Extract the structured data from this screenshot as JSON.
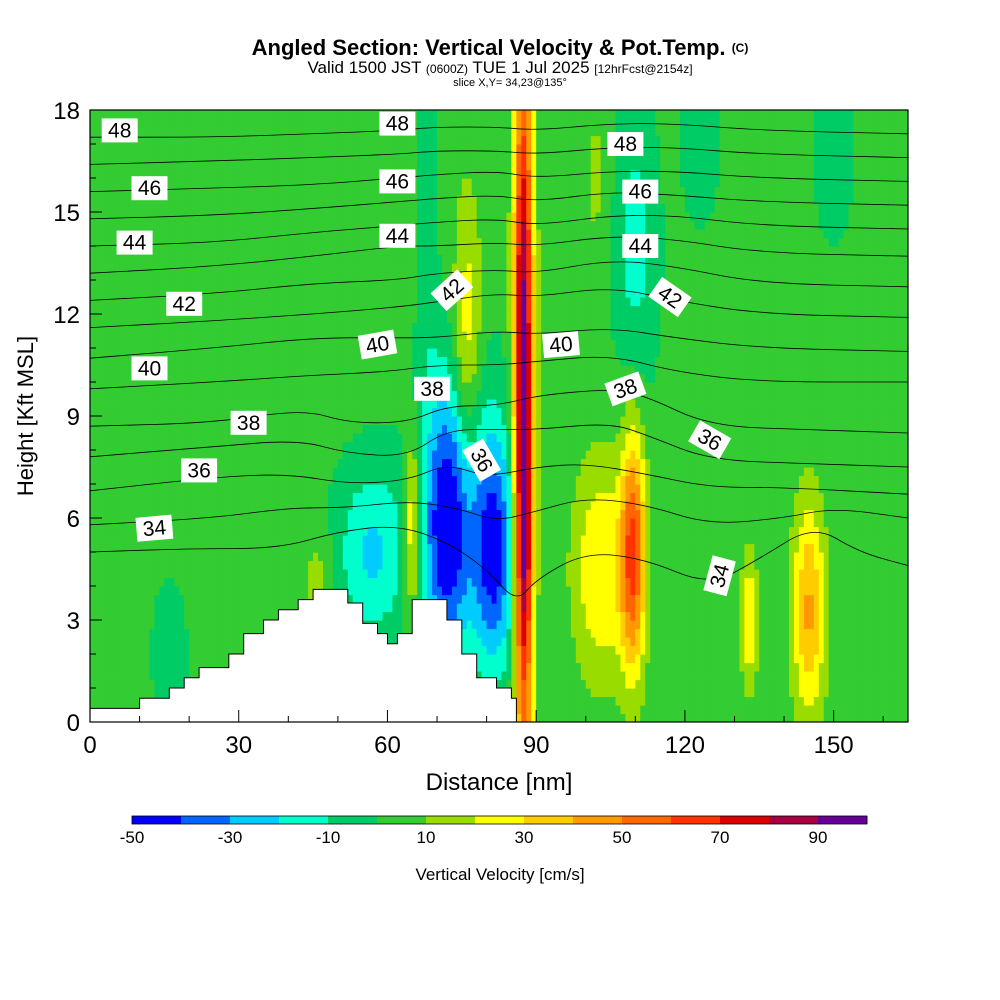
{
  "title": {
    "main": "Angled Section: Vertical Velocity & Pot.Temp.",
    "main_tag": "(C)",
    "valid_a": "Valid 1500 JST",
    "valid_small": "(0600Z)",
    "valid_b": "TUE 1 Jul 2025",
    "valid_fcst": "[12hrFcst@2154z]",
    "slice": "slice X,Y= 34,23@135°"
  },
  "chart_data": {
    "type": "heatmap",
    "xlabel": "Distance [nm]",
    "ylabel": "Height [Kft MSL]",
    "xlim": [
      0,
      165
    ],
    "ylim": [
      0,
      18
    ],
    "x_ticks": [
      0,
      30,
      60,
      90,
      120,
      150
    ],
    "y_ticks": [
      0,
      3,
      6,
      9,
      12,
      15,
      18
    ],
    "colorbar": {
      "label": "Vertical Velocity [cm/s]",
      "range": [
        -50,
        100
      ],
      "tick_values": [
        -50,
        -30,
        -10,
        10,
        30,
        50,
        70,
        90
      ],
      "colors": [
        "#0000ff",
        "#0066ff",
        "#00ccff",
        "#00ffcc",
        "#00cc66",
        "#33cc33",
        "#99dd00",
        "#ffff00",
        "#ffcc00",
        "#ff9900",
        "#ff6600",
        "#ff3300",
        "#dd0000",
        "#aa0044",
        "#660099"
      ]
    },
    "background_value": 3,
    "velocity_features": [
      {
        "x": 87.5,
        "y": 9.0,
        "sx": 1.4,
        "sy": 8.0,
        "value": 90
      },
      {
        "x": 87.5,
        "y": 5.5,
        "sx": 1.0,
        "sy": 2.5,
        "value": 25
      },
      {
        "x": 87.0,
        "y": 14.0,
        "sx": 1.0,
        "sy": 3.0,
        "value": 15
      },
      {
        "x": 81.5,
        "y": 5.0,
        "sx": 3.0,
        "sy": 2.4,
        "value": -45
      },
      {
        "x": 72.0,
        "y": 5.3,
        "sx": 3.2,
        "sy": 2.6,
        "value": -40
      },
      {
        "x": 74.0,
        "y": 7.8,
        "sx": 5.0,
        "sy": 3.0,
        "value": -18
      },
      {
        "x": 57.0,
        "y": 5.0,
        "sx": 5.0,
        "sy": 1.8,
        "value": -22
      },
      {
        "x": 76.0,
        "y": 11.0,
        "sx": 2.2,
        "sy": 3.0,
        "value": 32
      },
      {
        "x": 65.0,
        "y": 5.7,
        "sx": 1.1,
        "sy": 1.8,
        "value": 38
      },
      {
        "x": 103.0,
        "y": 4.5,
        "sx": 4.0,
        "sy": 2.3,
        "value": 30
      },
      {
        "x": 109.5,
        "y": 5.0,
        "sx": 1.8,
        "sy": 2.5,
        "value": 60
      },
      {
        "x": 145.0,
        "y": 3.3,
        "sx": 2.3,
        "sy": 2.3,
        "value": 42
      },
      {
        "x": 133.0,
        "y": 3.0,
        "sx": 1.2,
        "sy": 1.4,
        "value": 32
      },
      {
        "x": 110.0,
        "y": 14.0,
        "sx": 3.0,
        "sy": 3.0,
        "value": -14
      },
      {
        "x": 123.0,
        "y": 17.0,
        "sx": 2.5,
        "sy": 1.5,
        "value": -8
      },
      {
        "x": 102.0,
        "y": 16.0,
        "sx": 2.0,
        "sy": 2.0,
        "value": 12
      },
      {
        "x": 150.0,
        "y": 17.0,
        "sx": 3.0,
        "sy": 2.0,
        "value": -6
      },
      {
        "x": 16.0,
        "y": 2.0,
        "sx": 2.5,
        "sy": 1.5,
        "value": -6
      },
      {
        "x": 68.0,
        "y": 15.0,
        "sx": 1.2,
        "sy": 3.0,
        "value": -9
      },
      {
        "x": 46.0,
        "y": 4.0,
        "sx": 2.0,
        "sy": 1.2,
        "value": 16
      }
    ],
    "terrain_outline": [
      [
        0,
        0
      ],
      [
        0,
        0.4
      ],
      [
        10,
        0.4
      ],
      [
        10,
        0.7
      ],
      [
        16,
        0.7
      ],
      [
        16,
        1.0
      ],
      [
        19,
        1.0
      ],
      [
        19,
        1.3
      ],
      [
        22,
        1.3
      ],
      [
        22,
        1.6
      ],
      [
        28,
        1.6
      ],
      [
        28,
        2.0
      ],
      [
        31,
        2.0
      ],
      [
        31,
        2.6
      ],
      [
        35,
        2.6
      ],
      [
        35,
        3.0
      ],
      [
        38,
        3.0
      ],
      [
        38,
        3.3
      ],
      [
        42,
        3.3
      ],
      [
        42,
        3.6
      ],
      [
        45,
        3.6
      ],
      [
        45,
        3.9
      ],
      [
        52,
        3.9
      ],
      [
        52,
        3.5
      ],
      [
        55,
        3.5
      ],
      [
        55,
        2.9
      ],
      [
        58,
        2.9
      ],
      [
        58,
        2.6
      ],
      [
        60,
        2.6
      ],
      [
        60,
        2.3
      ],
      [
        62,
        2.3
      ],
      [
        62,
        2.6
      ],
      [
        65,
        2.6
      ],
      [
        65,
        3.6
      ],
      [
        72,
        3.6
      ],
      [
        72,
        3.0
      ],
      [
        75,
        3.0
      ],
      [
        75,
        2.0
      ],
      [
        78,
        2.0
      ],
      [
        78,
        1.3
      ],
      [
        82,
        1.3
      ],
      [
        82,
        1.0
      ],
      [
        85,
        1.0
      ],
      [
        85,
        0.7
      ],
      [
        86,
        0.7
      ],
      [
        86,
        0
      ],
      [
        0,
        0
      ]
    ],
    "theta_contours": [
      {
        "level": 34,
        "points": [
          [
            0,
            5.0
          ],
          [
            20,
            5.1
          ],
          [
            38,
            5.1
          ],
          [
            50,
            5.6
          ],
          [
            62,
            5.8
          ],
          [
            72,
            5.3
          ],
          [
            80,
            4.5
          ],
          [
            86,
            3.5
          ],
          [
            90,
            4.2
          ],
          [
            100,
            5.0
          ],
          [
            112,
            4.8
          ],
          [
            125,
            4.0
          ],
          [
            135,
            4.8
          ],
          [
            146,
            5.8
          ],
          [
            155,
            5.0
          ],
          [
            165,
            4.6
          ]
        ]
      },
      {
        "level": 35,
        "points": [
          [
            0,
            5.8
          ],
          [
            25,
            6.0
          ],
          [
            40,
            6.3
          ],
          [
            52,
            6.3
          ],
          [
            64,
            6.5
          ],
          [
            74,
            6.3
          ],
          [
            82,
            5.9
          ],
          [
            90,
            6.2
          ],
          [
            100,
            6.6
          ],
          [
            112,
            6.4
          ],
          [
            125,
            5.8
          ],
          [
            140,
            6.0
          ],
          [
            150,
            6.3
          ],
          [
            165,
            6.0
          ]
        ]
      },
      {
        "level": 36,
        "points": [
          [
            0,
            6.8
          ],
          [
            25,
            7.2
          ],
          [
            40,
            7.3
          ],
          [
            52,
            7.0
          ],
          [
            64,
            7.1
          ],
          [
            72,
            7.6
          ],
          [
            80,
            7.2
          ],
          [
            90,
            7.5
          ],
          [
            100,
            7.6
          ],
          [
            112,
            7.3
          ],
          [
            125,
            6.9
          ],
          [
            140,
            6.9
          ],
          [
            165,
            6.7
          ]
        ]
      },
      {
        "level": 37,
        "points": [
          [
            0,
            7.8
          ],
          [
            25,
            8.1
          ],
          [
            42,
            8.3
          ],
          [
            52,
            7.9
          ],
          [
            64,
            7.8
          ],
          [
            72,
            8.6
          ],
          [
            82,
            8.6
          ],
          [
            90,
            8.6
          ],
          [
            105,
            8.8
          ],
          [
            113,
            8.4
          ],
          [
            125,
            7.7
          ],
          [
            145,
            7.6
          ],
          [
            165,
            7.5
          ]
        ]
      },
      {
        "level": 38,
        "points": [
          [
            0,
            8.7
          ],
          [
            25,
            8.8
          ],
          [
            43,
            9.2
          ],
          [
            52,
            8.8
          ],
          [
            64,
            8.8
          ],
          [
            72,
            9.3
          ],
          [
            82,
            9.3
          ],
          [
            90,
            9.6
          ],
          [
            105,
            9.8
          ],
          [
            112,
            9.6
          ],
          [
            125,
            8.7
          ],
          [
            145,
            8.6
          ],
          [
            165,
            8.5
          ]
        ]
      },
      {
        "level": 39,
        "points": [
          [
            0,
            9.8
          ],
          [
            25,
            10.0
          ],
          [
            45,
            10.2
          ],
          [
            60,
            10.3
          ],
          [
            70,
            10.5
          ],
          [
            82,
            10.5
          ],
          [
            90,
            10.6
          ],
          [
            105,
            10.8
          ],
          [
            118,
            10.3
          ],
          [
            135,
            10.0
          ],
          [
            165,
            10.0
          ]
        ]
      },
      {
        "level": 40,
        "points": [
          [
            0,
            10.7
          ],
          [
            25,
            11.0
          ],
          [
            45,
            11.3
          ],
          [
            60,
            11.3
          ],
          [
            70,
            11.3
          ],
          [
            82,
            11.5
          ],
          [
            90,
            11.4
          ],
          [
            105,
            11.6
          ],
          [
            118,
            11.3
          ],
          [
            135,
            11.0
          ],
          [
            165,
            10.9
          ]
        ]
      },
      {
        "level": 41,
        "points": [
          [
            0,
            11.6
          ],
          [
            25,
            11.8
          ],
          [
            45,
            12.0
          ],
          [
            62,
            12.2
          ],
          [
            72,
            12.4
          ],
          [
            82,
            12.6
          ],
          [
            90,
            12.5
          ],
          [
            105,
            12.8
          ],
          [
            118,
            12.4
          ],
          [
            135,
            12.0
          ],
          [
            165,
            11.9
          ]
        ]
      },
      {
        "level": 42,
        "points": [
          [
            0,
            12.4
          ],
          [
            25,
            12.6
          ],
          [
            45,
            12.9
          ],
          [
            62,
            13.0
          ],
          [
            70,
            13.2
          ],
          [
            82,
            13.3
          ],
          [
            90,
            13.2
          ],
          [
            105,
            13.6
          ],
          [
            118,
            13.4
          ],
          [
            135,
            12.9
          ],
          [
            165,
            12.8
          ]
        ]
      },
      {
        "level": 43,
        "points": [
          [
            0,
            13.2
          ],
          [
            25,
            13.4
          ],
          [
            45,
            13.7
          ],
          [
            62,
            14.0
          ],
          [
            70,
            14.0
          ],
          [
            82,
            14.1
          ],
          [
            90,
            14.0
          ],
          [
            105,
            14.3
          ],
          [
            118,
            14.2
          ],
          [
            135,
            13.8
          ],
          [
            165,
            13.7
          ]
        ]
      },
      {
        "level": 44,
        "points": [
          [
            0,
            14.0
          ],
          [
            25,
            14.1
          ],
          [
            45,
            14.4
          ],
          [
            62,
            14.6
          ],
          [
            70,
            14.7
          ],
          [
            82,
            14.8
          ],
          [
            90,
            14.6
          ],
          [
            105,
            14.9
          ],
          [
            118,
            14.9
          ],
          [
            135,
            14.6
          ],
          [
            165,
            14.5
          ]
        ]
      },
      {
        "level": 45,
        "points": [
          [
            0,
            14.8
          ],
          [
            25,
            14.9
          ],
          [
            45,
            15.1
          ],
          [
            62,
            15.3
          ],
          [
            70,
            15.4
          ],
          [
            82,
            15.5
          ],
          [
            90,
            15.3
          ],
          [
            105,
            15.6
          ],
          [
            118,
            15.5
          ],
          [
            135,
            15.3
          ],
          [
            165,
            15.2
          ]
        ]
      },
      {
        "level": 46,
        "points": [
          [
            0,
            15.6
          ],
          [
            25,
            15.7
          ],
          [
            45,
            15.8
          ],
          [
            62,
            16.0
          ],
          [
            70,
            16.1
          ],
          [
            82,
            16.2
          ],
          [
            90,
            16.0
          ],
          [
            105,
            16.2
          ],
          [
            118,
            16.2
          ],
          [
            135,
            16.0
          ],
          [
            165,
            15.9
          ]
        ]
      },
      {
        "level": 47,
        "points": [
          [
            0,
            16.4
          ],
          [
            25,
            16.5
          ],
          [
            45,
            16.6
          ],
          [
            62,
            16.7
          ],
          [
            70,
            16.8
          ],
          [
            82,
            16.8
          ],
          [
            90,
            16.7
          ],
          [
            105,
            16.9
          ],
          [
            118,
            16.9
          ],
          [
            135,
            16.7
          ],
          [
            165,
            16.6
          ]
        ]
      },
      {
        "level": 48,
        "points": [
          [
            0,
            17.2
          ],
          [
            25,
            17.2
          ],
          [
            45,
            17.3
          ],
          [
            62,
            17.4
          ],
          [
            70,
            17.5
          ],
          [
            82,
            17.5
          ],
          [
            90,
            17.4
          ],
          [
            105,
            17.6
          ],
          [
            118,
            17.6
          ],
          [
            135,
            17.4
          ],
          [
            165,
            17.3
          ]
        ]
      }
    ],
    "contour_labels": [
      {
        "text": "48",
        "x": 6,
        "y": 17.4,
        "angle": 0
      },
      {
        "text": "46",
        "x": 12,
        "y": 15.7,
        "angle": 0
      },
      {
        "text": "44",
        "x": 9,
        "y": 14.1,
        "angle": 0
      },
      {
        "text": "42",
        "x": 19,
        "y": 12.3,
        "angle": 0
      },
      {
        "text": "40",
        "x": 12,
        "y": 10.4,
        "angle": 0
      },
      {
        "text": "38",
        "x": 32,
        "y": 8.8,
        "angle": 0
      },
      {
        "text": "36",
        "x": 22,
        "y": 7.4,
        "angle": 0
      },
      {
        "text": "34",
        "x": 13,
        "y": 5.7,
        "angle": -5
      },
      {
        "text": "48",
        "x": 62,
        "y": 17.6,
        "angle": 0
      },
      {
        "text": "46",
        "x": 62,
        "y": 15.9,
        "angle": 0
      },
      {
        "text": "44",
        "x": 62,
        "y": 14.3,
        "angle": 0
      },
      {
        "text": "42",
        "x": 73,
        "y": 12.7,
        "angle": -42
      },
      {
        "text": "40",
        "x": 58,
        "y": 11.1,
        "angle": -10
      },
      {
        "text": "38",
        "x": 69,
        "y": 9.8,
        "angle": 0
      },
      {
        "text": "36",
        "x": 79,
        "y": 7.7,
        "angle": 60
      },
      {
        "text": "48",
        "x": 108,
        "y": 17.0,
        "angle": 0
      },
      {
        "text": "46",
        "x": 111,
        "y": 15.6,
        "angle": 0
      },
      {
        "text": "44",
        "x": 111,
        "y": 14.0,
        "angle": 0
      },
      {
        "text": "42",
        "x": 117,
        "y": 12.5,
        "angle": 35
      },
      {
        "text": "40",
        "x": 95,
        "y": 11.1,
        "angle": -5
      },
      {
        "text": "38",
        "x": 108,
        "y": 9.8,
        "angle": -20
      },
      {
        "text": "36",
        "x": 125,
        "y": 8.3,
        "angle": 30
      },
      {
        "text": "34",
        "x": 127,
        "y": 4.3,
        "angle": -75
      }
    ]
  }
}
